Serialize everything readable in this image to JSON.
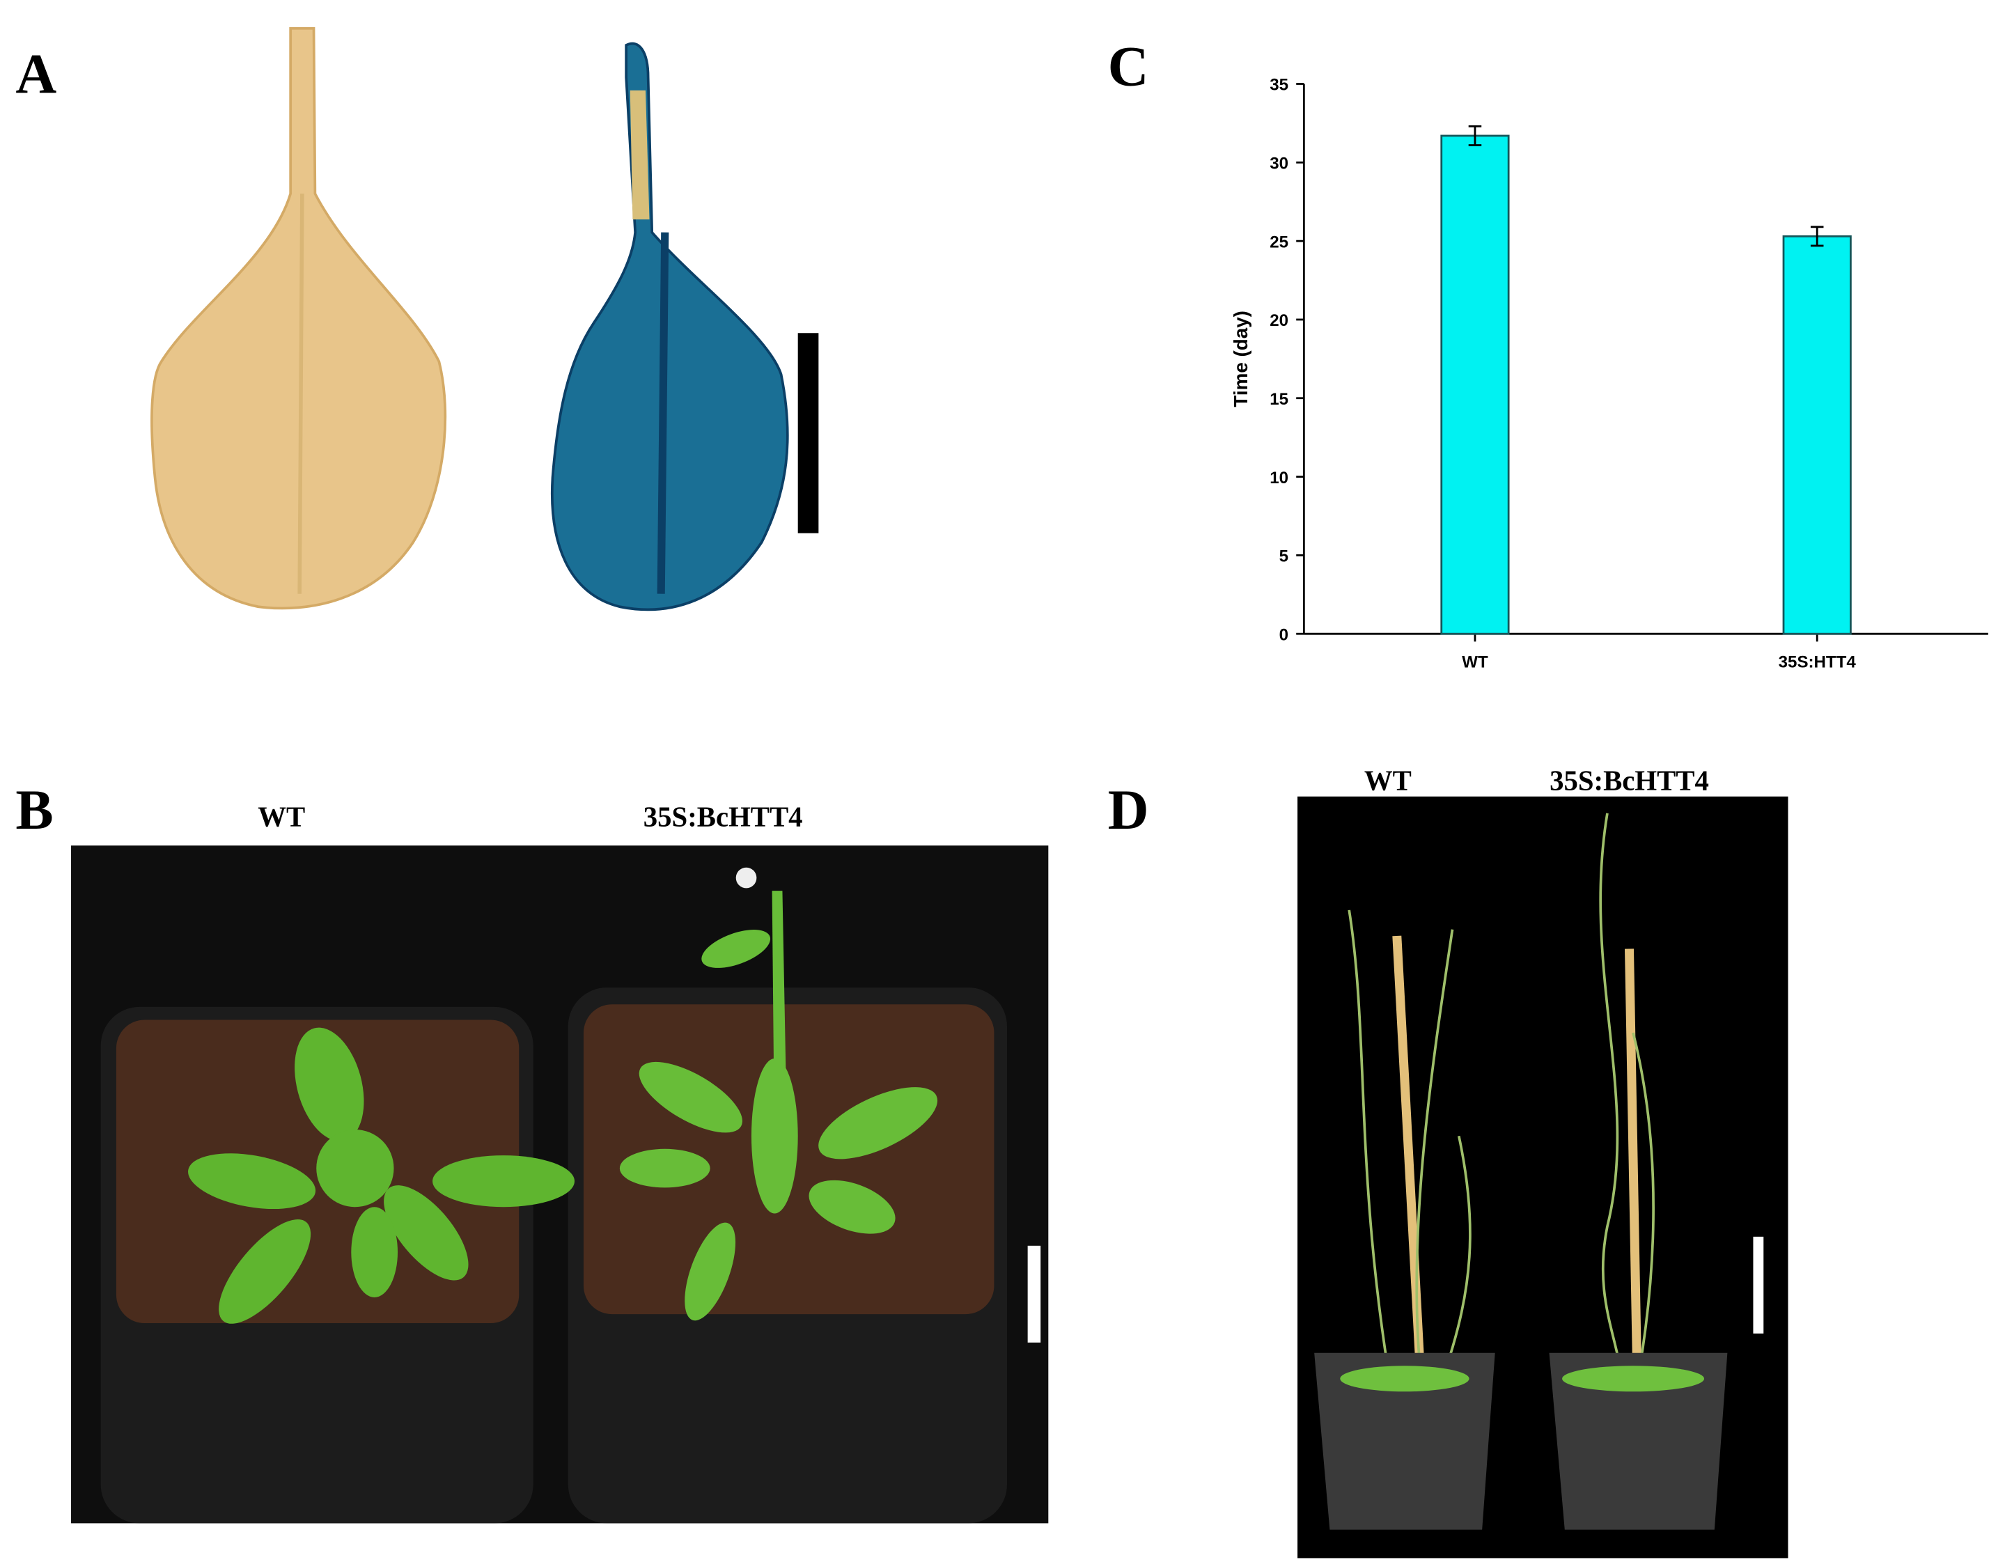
{
  "figure": {
    "panel_labels": [
      "A",
      "B",
      "C",
      "D"
    ],
    "photo_B_labels": [
      "WT",
      "35S:BcHTT4"
    ],
    "photo_D_labels": [
      "WT",
      "35S:BcHTT4"
    ]
  },
  "chart_data": {
    "type": "bar",
    "ylabel": "Time (day)",
    "categories": [
      "WT",
      "35S:HTT4"
    ],
    "values": [
      31.7,
      25.3
    ],
    "errors": [
      0.6,
      0.6
    ],
    "color": "#00f2f2",
    "ylim": [
      0,
      35
    ],
    "yticks": [
      0,
      5,
      10,
      15,
      20,
      25,
      30,
      35
    ]
  }
}
